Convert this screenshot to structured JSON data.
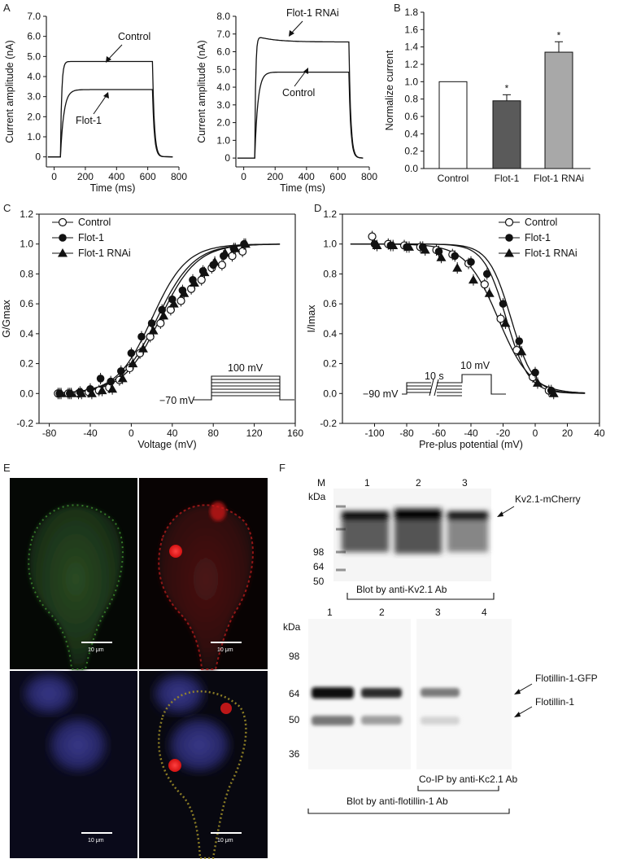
{
  "panels": {
    "A": "A",
    "B": "B",
    "C": "C",
    "D": "D",
    "E": "E",
    "F": "F"
  },
  "chart_data": [
    {
      "id": "A1",
      "type": "line",
      "xlabel": "Time (ms)",
      "ylabel": "Current amplitude (nA)",
      "xlim": [
        -50,
        800
      ],
      "ylim": [
        -0.5,
        7.0
      ],
      "xticks": [
        "0",
        "200",
        "400",
        "600",
        "800"
      ],
      "yticks": [
        "0",
        "1.0",
        "2.0",
        "3.0",
        "4.0",
        "5.0",
        "6.0",
        "7.0"
      ],
      "series": [
        {
          "name": "Control",
          "steady": 4.75,
          "onset": 40,
          "offset": 630
        },
        {
          "name": "Flot-1",
          "steady": 3.35,
          "onset": 40,
          "offset": 630
        }
      ]
    },
    {
      "id": "A2",
      "type": "line",
      "xlabel": "Time (ms)",
      "ylabel": "Current amplitude (nA)",
      "xlim": [
        -50,
        800
      ],
      "ylim": [
        -0.5,
        8.0
      ],
      "xticks": [
        "0",
        "200",
        "400",
        "600",
        "800"
      ],
      "yticks": [
        "0",
        "1.0",
        "2.0",
        "3.0",
        "4.0",
        "5.0",
        "6.0",
        "7.0",
        "8.0"
      ],
      "series": [
        {
          "name": "Flot-1 RNAi",
          "steady": 6.55,
          "peak": 6.9,
          "onset": 70,
          "offset": 670
        },
        {
          "name": "Control",
          "steady": 4.85,
          "onset": 70,
          "offset": 670
        }
      ]
    },
    {
      "id": "B",
      "type": "bar",
      "ylabel": "Normalize current",
      "categories": [
        "Control",
        "Flot-1",
        "Flot-1 RNAi"
      ],
      "values": [
        1.0,
        0.78,
        1.34
      ],
      "errors": [
        0.0,
        0.07,
        0.12
      ],
      "significance": [
        "",
        "*",
        "*"
      ],
      "colors": [
        "#ffffff",
        "#5a5a5a",
        "#a8a8a8"
      ],
      "ylim": [
        0.0,
        1.8
      ],
      "yticks": [
        "0.0",
        "0.2",
        "0.4",
        "0.6",
        "0.8",
        "1.0",
        "1.2",
        "1.4",
        "1.6",
        "1.8"
      ]
    },
    {
      "id": "C",
      "type": "scatter",
      "xlabel": "Voltage (mV)",
      "ylabel": "G/Gmax",
      "xlim": [
        -90,
        160
      ],
      "ylim": [
        -0.2,
        1.2
      ],
      "xticks": [
        "-80",
        "-40",
        "0",
        "40",
        "80",
        "120",
        "160"
      ],
      "yticks": [
        "-0.2",
        "0.0",
        "0.2",
        "0.4",
        "0.6",
        "0.8",
        "1.0",
        "1.2"
      ],
      "protocol": {
        "hold": "−70 mV",
        "step": "100 mV"
      },
      "series": [
        {
          "name": "Control",
          "marker": "open-circle",
          "v_half": 28,
          "k": 18,
          "x": [
            -70,
            -60,
            -50,
            -40,
            -30,
            -20,
            -10,
            0,
            10,
            20,
            30,
            40,
            50,
            60,
            70,
            80,
            90,
            100,
            110
          ],
          "y": [
            0.0,
            0.0,
            0.0,
            0.01,
            0.02,
            0.04,
            0.09,
            0.17,
            0.27,
            0.38,
            0.47,
            0.56,
            0.62,
            0.7,
            0.76,
            0.84,
            0.86,
            0.92,
            0.95
          ]
        },
        {
          "name": "Flot-1",
          "marker": "filled-circle",
          "v_half": 20,
          "k": 17,
          "x": [
            -70,
            -60,
            -50,
            -40,
            -30,
            -20,
            -10,
            0,
            10,
            20,
            30,
            40,
            50,
            60,
            70,
            80,
            90,
            100,
            110
          ],
          "y": [
            0.0,
            0.0,
            0.01,
            0.03,
            0.1,
            0.08,
            0.15,
            0.27,
            0.38,
            0.47,
            0.56,
            0.63,
            0.69,
            0.76,
            0.82,
            0.86,
            0.92,
            0.97,
            1.0
          ]
        },
        {
          "name": "Flot-1 RNAi",
          "marker": "filled-triangle",
          "v_half": 25,
          "k": 18,
          "x": [
            -70,
            -60,
            -50,
            -40,
            -30,
            -20,
            -10,
            0,
            10,
            20,
            30,
            40,
            50,
            60,
            70,
            80,
            90,
            100,
            110
          ],
          "y": [
            0.0,
            0.0,
            0.0,
            0.0,
            0.02,
            0.03,
            0.1,
            0.2,
            0.3,
            0.42,
            0.52,
            0.6,
            0.67,
            0.74,
            0.81,
            0.88,
            0.94,
            0.97,
            1.0
          ]
        }
      ]
    },
    {
      "id": "D",
      "type": "scatter",
      "xlabel": "Pre-plus potential (mV)",
      "ylabel": "I/Imax",
      "xlim": [
        -120,
        40
      ],
      "ylim": [
        -0.2,
        1.2
      ],
      "xticks": [
        "-100",
        "-80",
        "-60",
        "-40",
        "-20",
        "0",
        "20",
        "40"
      ],
      "yticks": [
        "-0.2",
        "0.0",
        "0.2",
        "0.4",
        "0.6",
        "0.8",
        "1.0",
        "1.2"
      ],
      "protocol": {
        "hold": "−90 mV",
        "duration": "10 s",
        "test": "10 mV"
      },
      "series": [
        {
          "name": "Control",
          "marker": "open-circle",
          "v_half": -18,
          "k": 7,
          "x": [
            -100,
            -90,
            -80,
            -70,
            -60,
            -50,
            -40,
            -30,
            -20,
            -10,
            0,
            10
          ],
          "y": [
            1.05,
            1.0,
            0.99,
            0.98,
            0.96,
            0.93,
            0.87,
            0.73,
            0.5,
            0.29,
            0.11,
            0.02
          ]
        },
        {
          "name": "Flot-1",
          "marker": "filled-circle",
          "v_half": -15,
          "k": 7,
          "x": [
            -100,
            -90,
            -80,
            -70,
            -60,
            -50,
            -40,
            -30,
            -20,
            -10,
            0,
            10
          ],
          "y": [
            1.0,
            0.99,
            0.98,
            0.98,
            0.95,
            0.92,
            0.88,
            0.8,
            0.6,
            0.35,
            0.14,
            0.02
          ]
        },
        {
          "name": "Flot-1 RNAi",
          "marker": "filled-triangle",
          "v_half": -23,
          "k": 10,
          "x": [
            -100,
            -90,
            -80,
            -70,
            -60,
            -50,
            -40,
            -30,
            -20,
            -10,
            0,
            10
          ],
          "y": [
            0.99,
            0.99,
            0.98,
            0.96,
            0.91,
            0.84,
            0.76,
            0.67,
            0.47,
            0.28,
            0.07,
            0.0
          ]
        }
      ]
    }
  ],
  "panelA": {
    "left": {
      "label_control": "Control",
      "label_flot": "Flot-1"
    },
    "right": {
      "label_rnai": "Flot-1 RNAi",
      "label_control": "Control"
    }
  },
  "panelE": {
    "scale_bar": "10 μm"
  },
  "panelF": {
    "top": {
      "kda": "kDa",
      "lane_labels": [
        "M",
        "1",
        "2",
        "3"
      ],
      "markers": [
        "98",
        "64",
        "50"
      ],
      "arrow_label": "Kv2.1-mCherry",
      "caption": "Blot by anti-Kv2.1 Ab"
    },
    "bottom": {
      "kda": "kDa",
      "lane_labels": [
        "1",
        "2",
        "3",
        "4"
      ],
      "markers": [
        "98",
        "64",
        "50",
        "36"
      ],
      "arrow_gfp": "Flotillin-1-GFP",
      "arrow_flot": "Flotillin-1",
      "coip_caption": "Co-IP by anti-Kc2.1 Ab",
      "caption": "Blot by anti-flotillin-1 Ab"
    }
  }
}
